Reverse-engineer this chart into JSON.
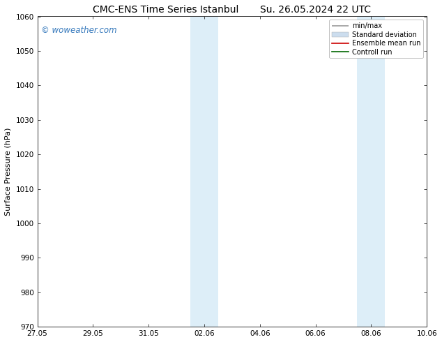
{
  "title_left": "CMC-ENS Time Series Istanbul",
  "title_right": "Su. 26.05.2024 22 UTC",
  "ylabel": "Surface Pressure (hPa)",
  "ylim": [
    970,
    1060
  ],
  "yticks": [
    970,
    980,
    990,
    1000,
    1010,
    1020,
    1030,
    1040,
    1050,
    1060
  ],
  "xtick_labels": [
    "27.05",
    "29.05",
    "31.05",
    "02.06",
    "04.06",
    "06.06",
    "08.06",
    "10.06"
  ],
  "xtick_positions": [
    0,
    2,
    4,
    6,
    8,
    10,
    12,
    14
  ],
  "xlim": [
    0,
    14
  ],
  "shaded_bands": [
    {
      "x_start": 5.5,
      "x_end": 6.0,
      "color": "#ddeef8"
    },
    {
      "x_start": 6.0,
      "x_end": 6.5,
      "color": "#ddeef8"
    },
    {
      "x_start": 11.5,
      "x_end": 12.0,
      "color": "#ddeef8"
    },
    {
      "x_start": 12.0,
      "x_end": 12.5,
      "color": "#ddeef8"
    }
  ],
  "watermark": "© woweather.com",
  "watermark_color": "#3377bb",
  "bg_color": "#ffffff",
  "plot_bg_color": "#ffffff",
  "legend_items": [
    {
      "label": "min/max",
      "color": "#999999",
      "lw": 1.2
    },
    {
      "label": "Standard deviation",
      "color": "#ccddee",
      "lw": 6
    },
    {
      "label": "Ensemble mean run",
      "color": "#cc0000",
      "lw": 1.2
    },
    {
      "label": "Controll run",
      "color": "#006600",
      "lw": 1.2
    }
  ],
  "title_fontsize": 10,
  "axis_fontsize": 8,
  "tick_fontsize": 7.5,
  "legend_fontsize": 7,
  "watermark_fontsize": 8.5
}
